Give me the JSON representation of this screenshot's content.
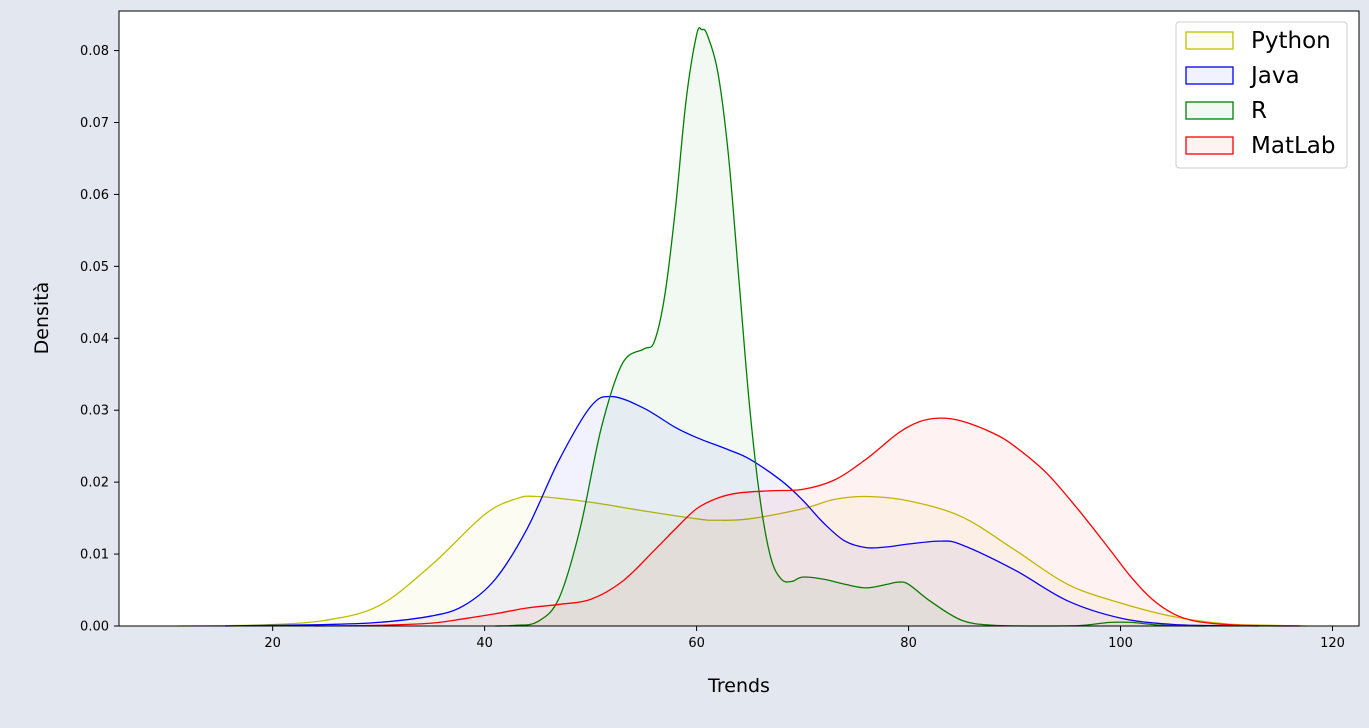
{
  "chart_data": {
    "type": "area",
    "title": "",
    "xlabel": "Trends",
    "ylabel": "Densità",
    "xlim": [
      5.5,
      122.5
    ],
    "ylim": [
      0,
      0.0855
    ],
    "xticks": [
      "20",
      "40",
      "60",
      "80",
      "100",
      "120"
    ],
    "yticks": [
      "0.00",
      "0.01",
      "0.02",
      "0.03",
      "0.04",
      "0.05",
      "0.06",
      "0.07",
      "0.08"
    ],
    "grid": false,
    "legend_position": "top-right",
    "series": [
      {
        "name": "Python",
        "color": "#bfbf00",
        "points": [
          [
            11,
            0
          ],
          [
            15,
            5e-05
          ],
          [
            20,
            0.0002
          ],
          [
            25,
            0.0008
          ],
          [
            30,
            0.0028
          ],
          [
            35,
            0.0085
          ],
          [
            40,
            0.0155
          ],
          [
            43,
            0.0177
          ],
          [
            45,
            0.018
          ],
          [
            50,
            0.0172
          ],
          [
            55,
            0.016
          ],
          [
            60,
            0.0149
          ],
          [
            62,
            0.0147
          ],
          [
            65,
            0.0149
          ],
          [
            70,
            0.0163
          ],
          [
            73,
            0.0176
          ],
          [
            76,
            0.018
          ],
          [
            80,
            0.0174
          ],
          [
            85,
            0.0152
          ],
          [
            90,
            0.0106
          ],
          [
            95,
            0.0058
          ],
          [
            100,
            0.0032
          ],
          [
            105,
            0.0013
          ],
          [
            110,
            0.0003
          ],
          [
            114,
            0.0001
          ],
          [
            117.5,
            0
          ]
        ]
      },
      {
        "name": "Java",
        "color": "#0000ff",
        "points": [
          [
            15.5,
            0
          ],
          [
            20,
            0.0001
          ],
          [
            25,
            0.0002
          ],
          [
            30,
            0.0005
          ],
          [
            35,
            0.0014
          ],
          [
            38,
            0.0028
          ],
          [
            41,
            0.0065
          ],
          [
            44,
            0.0135
          ],
          [
            47,
            0.023
          ],
          [
            50,
            0.0305
          ],
          [
            52,
            0.0319
          ],
          [
            55,
            0.0303
          ],
          [
            58,
            0.0276
          ],
          [
            60,
            0.0262
          ],
          [
            63,
            0.0245
          ],
          [
            65,
            0.0232
          ],
          [
            68,
            0.0202
          ],
          [
            70,
            0.0175
          ],
          [
            72,
            0.0143
          ],
          [
            74,
            0.0118
          ],
          [
            76,
            0.0109
          ],
          [
            78,
            0.011
          ],
          [
            80,
            0.0114
          ],
          [
            83,
            0.0118
          ],
          [
            85,
            0.0113
          ],
          [
            90,
            0.0078
          ],
          [
            95,
            0.0035
          ],
          [
            100,
            0.0011
          ],
          [
            105,
            0.0002
          ],
          [
            110,
            5e-05
          ],
          [
            113,
            0
          ]
        ]
      },
      {
        "name": "R",
        "color": "#008000",
        "points": [
          [
            41,
            0
          ],
          [
            43,
            0.0001
          ],
          [
            45,
            0.0006
          ],
          [
            47,
            0.0038
          ],
          [
            49,
            0.0135
          ],
          [
            51,
            0.0275
          ],
          [
            53,
            0.0365
          ],
          [
            55,
            0.0385
          ],
          [
            56,
            0.0395
          ],
          [
            57,
            0.046
          ],
          [
            58,
            0.058
          ],
          [
            59,
            0.073
          ],
          [
            60,
            0.0822
          ],
          [
            60.5,
            0.0829
          ],
          [
            61,
            0.0822
          ],
          [
            62,
            0.077
          ],
          [
            63,
            0.0655
          ],
          [
            64,
            0.048
          ],
          [
            65,
            0.0305
          ],
          [
            66,
            0.0175
          ],
          [
            67,
            0.0095
          ],
          [
            68,
            0.0065
          ],
          [
            69,
            0.0062
          ],
          [
            70,
            0.0068
          ],
          [
            72,
            0.0065
          ],
          [
            74,
            0.0058
          ],
          [
            76,
            0.0053
          ],
          [
            78,
            0.0058
          ],
          [
            79,
            0.0061
          ],
          [
            80,
            0.0058
          ],
          [
            82,
            0.0035
          ],
          [
            85,
            0.0008
          ],
          [
            88,
            0.0001
          ],
          [
            92,
            0
          ],
          [
            96,
            5e-05
          ],
          [
            99,
            0.0005
          ],
          [
            101,
            0.0005
          ],
          [
            104,
            0.0001
          ],
          [
            108,
            0
          ]
        ]
      },
      {
        "name": "MatLab",
        "color": "#ff0000",
        "points": [
          [
            24,
            0
          ],
          [
            30,
            0.0001
          ],
          [
            35,
            0.0004
          ],
          [
            38,
            0.001
          ],
          [
            41,
            0.0017
          ],
          [
            44,
            0.0025
          ],
          [
            47,
            0.003
          ],
          [
            50,
            0.0037
          ],
          [
            53,
            0.0062
          ],
          [
            56,
            0.0105
          ],
          [
            58,
            0.0135
          ],
          [
            60,
            0.0163
          ],
          [
            62,
            0.0178
          ],
          [
            64,
            0.0185
          ],
          [
            67,
            0.0188
          ],
          [
            70,
            0.019
          ],
          [
            73,
            0.0203
          ],
          [
            76,
            0.0232
          ],
          [
            79,
            0.0268
          ],
          [
            81,
            0.0284
          ],
          [
            83,
            0.0289
          ],
          [
            85,
            0.0285
          ],
          [
            88,
            0.0268
          ],
          [
            90,
            0.025
          ],
          [
            93,
            0.0213
          ],
          [
            96,
            0.0162
          ],
          [
            99,
            0.0106
          ],
          [
            101,
            0.0068
          ],
          [
            103,
            0.0037
          ],
          [
            105,
            0.0017
          ],
          [
            107,
            0.0007
          ],
          [
            110,
            0.0002
          ],
          [
            113,
            5e-05
          ],
          [
            117,
            0
          ]
        ]
      }
    ]
  }
}
